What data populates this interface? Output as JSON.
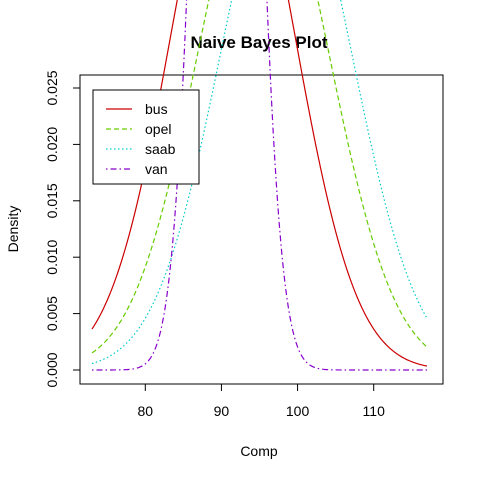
{
  "chart_data": {
    "type": "line",
    "title": "Naive Bayes Plot",
    "xlabel": "Comp",
    "ylabel": "Density",
    "xlim": [
      73,
      117
    ],
    "ylim": [
      0,
      0.025
    ],
    "xticks": [
      80,
      90,
      100,
      110
    ],
    "xtick_labels": [
      "80",
      "90",
      "100",
      "110"
    ],
    "yticks": [
      0.0,
      0.005,
      0.01,
      0.015,
      0.02,
      0.025
    ],
    "ytick_labels": [
      "0.000",
      "0.005",
      "0.010",
      "0.015",
      "0.020",
      "0.025"
    ],
    "legend_position": "top-left",
    "grid": false,
    "series": [
      {
        "name": "bus",
        "color": "#cc0000",
        "dash": "solid",
        "distribution": "normal",
        "mean": 91.5,
        "sd": 8.1,
        "x_range": [
          73,
          117
        ]
      },
      {
        "name": "opel",
        "color": "#66cc00",
        "dash": "dashed",
        "distribution": "normal",
        "mean": 95.5,
        "sd": 8.6,
        "x_range": [
          73,
          117
        ]
      },
      {
        "name": "saab",
        "color": "#00cccc",
        "dash": "dotted",
        "distribution": "normal",
        "mean": 98.5,
        "sd": 8.6,
        "x_range": [
          73,
          117
        ]
      },
      {
        "name": "van",
        "color": "#8800cc",
        "dash": "dotdash",
        "distribution": "normal",
        "mean": 90.7,
        "sd": 3.25,
        "x_range": [
          73,
          117
        ]
      }
    ]
  }
}
